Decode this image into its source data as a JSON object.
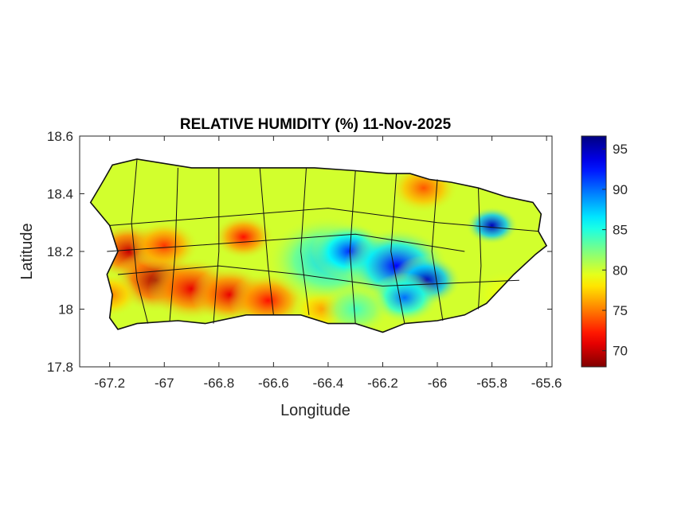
{
  "chart_data": {
    "type": "heatmap",
    "title": "RELATIVE HUMIDITY (%) 11-Nov-2025",
    "xlabel": "Longitude",
    "ylabel": "Latitude",
    "xlim": [
      -67.31,
      -65.58
    ],
    "ylim": [
      17.8,
      18.6
    ],
    "xticks": [
      -67.2,
      -67,
      -66.8,
      -66.6,
      -66.4,
      -66.2,
      -66,
      -65.8,
      -65.6
    ],
    "xtick_labels": [
      "-67.2",
      "-67",
      "-66.8",
      "-66.6",
      "-66.4",
      "-66.2",
      "-66",
      "-65.8",
      "-65.6"
    ],
    "yticks": [
      17.8,
      18,
      18.2,
      18.4,
      18.6
    ],
    "ytick_labels": [
      "17.8",
      "18",
      "18.2",
      "18.4",
      "18.6"
    ],
    "colorbar": {
      "colormap": "jet",
      "clim": [
        68,
        96.6
      ],
      "ticks": [
        70,
        75,
        80,
        85,
        90,
        95
      ],
      "tick_labels": [
        "70",
        "75",
        "80",
        "85",
        "90",
        "95"
      ],
      "placement": "right"
    },
    "background_value": 80,
    "field_samples": [
      {
        "lon": -67.13,
        "lat": 18.2,
        "value": 70,
        "radius": 0.09
      },
      {
        "lon": -67.03,
        "lat": 18.1,
        "value": 69,
        "radius": 0.1
      },
      {
        "lon": -66.9,
        "lat": 18.07,
        "value": 71,
        "radius": 0.1
      },
      {
        "lon": -66.76,
        "lat": 18.05,
        "value": 71,
        "radius": 0.09
      },
      {
        "lon": -66.62,
        "lat": 18.03,
        "value": 72,
        "radius": 0.09
      },
      {
        "lon": -66.71,
        "lat": 18.25,
        "value": 72,
        "radius": 0.07
      },
      {
        "lon": -67.2,
        "lat": 18.05,
        "value": 75,
        "radius": 0.07
      },
      {
        "lon": -67.0,
        "lat": 18.22,
        "value": 73,
        "radius": 0.08
      },
      {
        "lon": -66.42,
        "lat": 18.0,
        "value": 76,
        "radius": 0.07
      },
      {
        "lon": -66.05,
        "lat": 18.42,
        "value": 74,
        "radius": 0.08
      },
      {
        "lon": -66.4,
        "lat": 18.17,
        "value": 87,
        "radius": 0.14
      },
      {
        "lon": -66.32,
        "lat": 18.2,
        "value": 92,
        "radius": 0.09
      },
      {
        "lon": -66.15,
        "lat": 18.15,
        "value": 93,
        "radius": 0.12
      },
      {
        "lon": -66.04,
        "lat": 18.1,
        "value": 95,
        "radius": 0.08
      },
      {
        "lon": -66.12,
        "lat": 18.04,
        "value": 90,
        "radius": 0.08
      },
      {
        "lon": -65.8,
        "lat": 18.29,
        "value": 95,
        "radius": 0.06
      },
      {
        "lon": -66.3,
        "lat": 18.0,
        "value": 84,
        "radius": 0.08
      },
      {
        "lon": -66.55,
        "lat": 18.45,
        "value": 80,
        "radius": 0.1
      },
      {
        "lon": -65.75,
        "lat": 18.05,
        "value": 79,
        "radius": 0.08
      }
    ],
    "grid": false
  }
}
